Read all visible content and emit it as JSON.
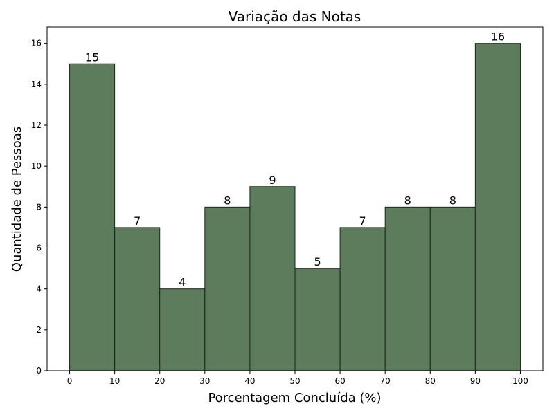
{
  "chart_data": {
    "type": "bar",
    "title": "Variação das Notas",
    "xlabel": "Porcentagem Concluída (%)",
    "ylabel": "Quantidade de Pessoas",
    "bin_edges": [
      0,
      10,
      20,
      30,
      40,
      50,
      60,
      70,
      80,
      90,
      100
    ],
    "values": [
      15,
      7,
      4,
      8,
      9,
      5,
      7,
      8,
      8,
      16
    ],
    "data_labels": [
      "15",
      "7",
      "4",
      "8",
      "9",
      "5",
      "7",
      "8",
      "8",
      "16"
    ],
    "xlim": [
      -5,
      105
    ],
    "ylim": [
      0,
      16.8
    ],
    "x_ticks": [
      "0",
      "10",
      "20",
      "30",
      "40",
      "50",
      "60",
      "70",
      "80",
      "90",
      "100"
    ],
    "y_ticks": [
      "0",
      "2",
      "4",
      "6",
      "8",
      "10",
      "12",
      "14",
      "16"
    ],
    "grid": false,
    "colors": {
      "bar_fill": "#5c7c5c",
      "bar_edge": "#1b261b"
    }
  }
}
